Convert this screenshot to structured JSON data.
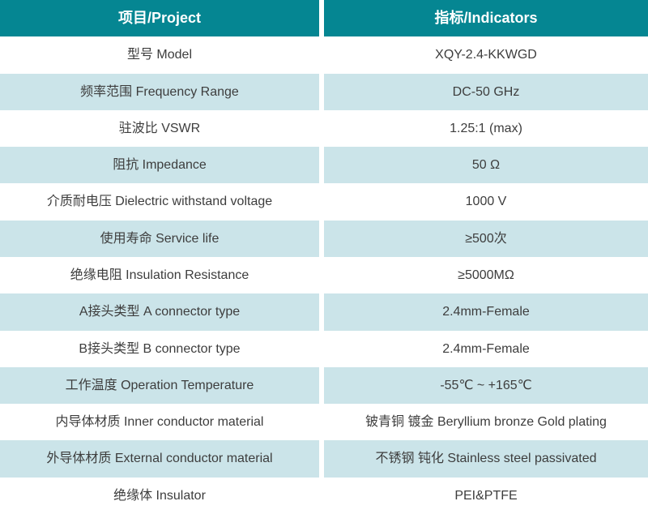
{
  "header": {
    "project_label": "项目/Project",
    "indicators_label": "指标/Indicators"
  },
  "rows": [
    {
      "project": "型号 Model",
      "indicator": "XQY-2.4-KKWGD"
    },
    {
      "project": "频率范围 Frequency Range",
      "indicator": "DC-50 GHz"
    },
    {
      "project": "驻波比 VSWR",
      "indicator": "1.25:1 (max)"
    },
    {
      "project": "阻抗 Impedance",
      "indicator": "50 Ω"
    },
    {
      "project": "介质耐电压 Dielectric withstand voltage",
      "indicator": "1000 V"
    },
    {
      "project": "使用寿命 Service life",
      "indicator": "≥500次"
    },
    {
      "project": "绝缘电阻 Insulation Resistance",
      "indicator": "≥5000MΩ"
    },
    {
      "project": "A接头类型 A connector type",
      "indicator": "2.4mm-Female"
    },
    {
      "project": "B接头类型 B connector type",
      "indicator": "2.4mm-Female"
    },
    {
      "project": "工作温度 Operation Temperature",
      "indicator": "-55℃ ~ +165℃"
    },
    {
      "project": "内导体材质 Inner conductor material",
      "indicator": "铍青铜 镀金 Beryllium bronze Gold plating"
    },
    {
      "project": "外导体材质 External conductor material",
      "indicator": "不锈钢 钝化 Stainless steel passivated"
    },
    {
      "project": "绝缘体 Insulator",
      "indicator": "PEI&PTFE"
    }
  ],
  "colors": {
    "header_bg": "#058692",
    "header_text": "#ffffff",
    "row_bg": "#ffffff",
    "row_alt_bg": "#cbe4e9",
    "body_text": "#3d3d3d"
  },
  "chart_data": {
    "type": "table",
    "title": "",
    "columns": [
      "项目/Project",
      "指标/Indicators"
    ],
    "rows": [
      [
        "型号 Model",
        "XQY-2.4-KKWGD"
      ],
      [
        "频率范围 Frequency Range",
        "DC-50 GHz"
      ],
      [
        "驻波比 VSWR",
        "1.25:1 (max)"
      ],
      [
        "阻抗 Impedance",
        "50 Ω"
      ],
      [
        "介质耐电压 Dielectric withstand voltage",
        "1000 V"
      ],
      [
        "使用寿命 Service life",
        "≥500次"
      ],
      [
        "绝缘电阻 Insulation Resistance",
        "≥5000MΩ"
      ],
      [
        "A接头类型 A connector type",
        "2.4mm-Female"
      ],
      [
        "B接头类型 B connector type",
        "2.4mm-Female"
      ],
      [
        "工作温度 Operation Temperature",
        "-55℃ ~ +165℃"
      ],
      [
        "内导体材质 Inner conductor material",
        "铍青铜 镀金 Beryllium bronze Gold plating"
      ],
      [
        "外导体材质 External conductor material",
        "不锈钢 钝化 Stainless steel passivated"
      ],
      [
        "绝缘体 Insulator",
        "PEI&PTFE"
      ]
    ]
  }
}
